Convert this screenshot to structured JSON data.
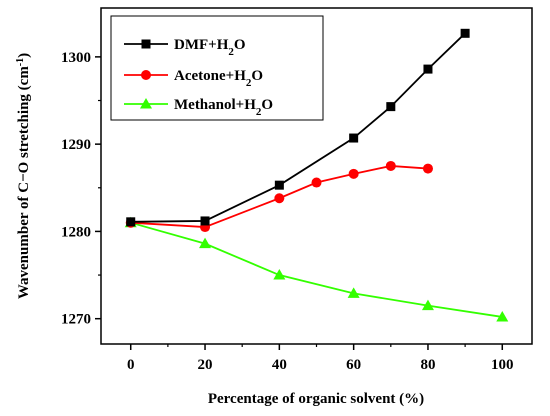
{
  "chart_data": {
    "type": "line",
    "xlabel": "Percentage of organic solvent (%)",
    "ylabel": "Wavenumber of C−O stretching (cm⁻¹)",
    "ylabel_main": "Wavenumber of C−O stretching (cm",
    "ylabel_sup": "-1",
    "ylabel_close": ")",
    "xlim": [
      -8,
      108
    ],
    "ylim": [
      1267.1,
      1305.6
    ],
    "xticks": [
      0,
      20,
      40,
      60,
      80,
      100
    ],
    "yticks": [
      1270,
      1280,
      1290,
      1300
    ],
    "grid": false,
    "legend_position": "top-left",
    "series": [
      {
        "name": "DMF+H2O",
        "name_main": "DMF+H",
        "name_sub": "2",
        "name_tail": "O",
        "color": "#000000",
        "marker": "square",
        "x": [
          0,
          20,
          40,
          60,
          70,
          80,
          90
        ],
        "y": [
          1281.1,
          1281.2,
          1285.3,
          1290.7,
          1294.3,
          1298.6,
          1302.7
        ]
      },
      {
        "name": "Acetone+H2O",
        "name_main": "Acetone+H",
        "name_sub": "2",
        "name_tail": "O",
        "color": "#ff0000",
        "marker": "circle",
        "x": [
          0,
          20,
          40,
          50,
          60,
          70,
          80
        ],
        "y": [
          1281.0,
          1280.5,
          1283.8,
          1285.6,
          1286.6,
          1287.5,
          1287.2
        ]
      },
      {
        "name": "Methanol+H2O",
        "name_main": "Methanol+H",
        "name_sub": "2",
        "name_tail": "O",
        "color": "#33ff00",
        "marker": "triangle",
        "x": [
          0,
          20,
          40,
          60,
          80,
          100
        ],
        "y": [
          1281.0,
          1278.6,
          1275.0,
          1272.9,
          1271.5,
          1270.2
        ]
      }
    ]
  }
}
